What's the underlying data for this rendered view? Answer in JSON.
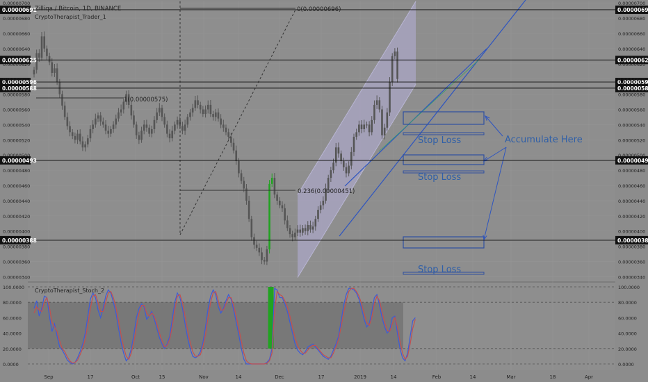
{
  "header": {
    "symbol_line": "Zilliqa / Bitcoin, 1D, BINANCE",
    "indicator_1": "CryptoTherapist_Trader_1",
    "indicator_2": "CryptoTherapist_Stoch_2"
  },
  "colors": {
    "background": "#8c8c8c",
    "panel": "#8e8e8e",
    "candle": "#555555",
    "channel_fill": "#a9a6c4",
    "box_stroke": "#2e4fa0",
    "annotation_text": "#2f5fa8",
    "stoch_k": "#3d5bd8",
    "stoch_d": "#c25050",
    "highlight_green": "#21a321",
    "level_line": "#111111"
  },
  "chart_data": [
    {
      "type": "candlestick",
      "title": "Zilliqa / Bitcoin, 1D, BINANCE",
      "ylim": [
        3.34e-06,
        7.02e-06
      ],
      "x_ticks": [
        "Sep",
        "17",
        "Oct",
        "15",
        "Nov",
        "14",
        "Dec",
        "17",
        "2019",
        "14",
        "Feb",
        "14",
        "Mar",
        "18",
        "Apr"
      ],
      "y_ticks": [
        "0.00000340",
        "0.00000360",
        "0.00000380",
        "0.00000400",
        "0.00000420",
        "0.00000440",
        "0.00000460",
        "0.00000480",
        "0.00000500",
        "0.00000520",
        "0.00000540",
        "0.00000560",
        "0.00000580",
        "0.00000600",
        "0.00000620",
        "0.00000640",
        "0.00000660",
        "0.00000680",
        "0.00000700"
      ],
      "close": [
        6.12e-06,
        6.34e-06,
        6.28e-06,
        6.56e-06,
        6.4e-06,
        6.3e-06,
        6.22e-06,
        6.08e-06,
        6.14e-06,
        5.96e-06,
        5.8e-06,
        5.65e-06,
        5.5e-06,
        5.38e-06,
        5.3e-06,
        5.25e-06,
        5.2e-06,
        5.28e-06,
        5.18e-06,
        5.1e-06,
        5.14e-06,
        5.22e-06,
        5.34e-06,
        5.4e-06,
        5.48e-06,
        5.52e-06,
        5.44e-06,
        5.4e-06,
        5.32e-06,
        5.28e-06,
        5.34e-06,
        5.4e-06,
        5.48e-06,
        5.56e-06,
        5.6e-06,
        5.7e-06,
        5.8e-06,
        5.66e-06,
        5.52e-06,
        5.4e-06,
        5.26e-06,
        5.2e-06,
        5.32e-06,
        5.4e-06,
        5.36e-06,
        5.28e-06,
        5.34e-06,
        5.46e-06,
        5.56e-06,
        5.62e-06,
        5.5e-06,
        5.4e-06,
        5.28e-06,
        5.22e-06,
        5.32e-06,
        5.4e-06,
        5.46e-06,
        5.38e-06,
        5.32e-06,
        5.4e-06,
        5.5e-06,
        5.56e-06,
        5.62e-06,
        5.72e-06,
        5.66e-06,
        5.6e-06,
        5.54e-06,
        5.6e-06,
        5.66e-06,
        5.54e-06,
        5.5e-06,
        5.56e-06,
        5.48e-06,
        5.4e-06,
        5.36e-06,
        5.3e-06,
        5.24e-06,
        5.16e-06,
        5.06e-06,
        4.92e-06,
        4.76e-06,
        4.66e-06,
        4.56e-06,
        4.4e-06,
        4.16e-06,
        3.92e-06,
        3.82e-06,
        3.78e-06,
        3.72e-06,
        3.62e-06,
        3.6e-06,
        3.76e-06,
        4.62e-06,
        4.7e-06,
        4.48e-06,
        4.4e-06,
        4.34e-06,
        4.3e-06,
        4.14e-06,
        4.04e-06,
        3.96e-06,
        3.92e-06,
        3.98e-06,
        4.02e-06,
        3.98e-06,
        4.04e-06,
        4e-06,
        4.08e-06,
        4.02e-06,
        4.06e-06,
        4.16e-06,
        4.28e-06,
        4.34e-06,
        4.4e-06,
        4.56e-06,
        4.7e-06,
        4.8e-06,
        4.9e-06,
        5.1e-06,
        5.02e-06,
        4.92e-06,
        4.84e-06,
        4.76e-06,
        4.86e-06,
        5.04e-06,
        5.24e-06,
        5.3e-06,
        5.4e-06,
        5.34e-06,
        5.4e-06,
        5.4e-06,
        5.3e-06,
        5.46e-06,
        5.66e-06,
        5.72e-06,
        5.6e-06,
        5.26e-06,
        5.36e-06,
        5.56e-06,
        5.96e-06,
        6.3e-06,
        6.36e-06,
        6e-06
      ],
      "levels": [
        {
          "label": "0.00000691",
          "value": 6.91e-06
        },
        {
          "label": "0.00000625",
          "value": 6.25e-06
        },
        {
          "label": "0.00000596",
          "value": 5.96e-06
        },
        {
          "label": "0.00000588",
          "value": 5.88e-06
        },
        {
          "label": "0.00000493",
          "value": 4.93e-06
        },
        {
          "label": "0.00000388",
          "value": 3.88e-06
        }
      ],
      "fib_labels": [
        "0(0.00000696)",
        "1(0.00000575)",
        "0.236(0.00000451)"
      ],
      "annotations": [
        "Stop Loss",
        "Stop Loss",
        "Stop Loss",
        "Accumulate Here"
      ]
    },
    {
      "type": "line",
      "title": "CryptoTherapist_Stoch_2",
      "ylim": [
        0,
        100
      ],
      "y_ticks": [
        "0.0000",
        "20.0000",
        "40.0000",
        "60.0000",
        "80.0000",
        "100.0000"
      ],
      "bands": [
        20,
        80
      ],
      "series": [
        {
          "values": [
            72,
            82,
            62,
            72,
            88,
            86,
            62,
            42,
            52,
            36,
            22,
            18,
            12,
            5,
            2,
            0,
            2,
            8,
            16,
            26,
            40,
            62,
            84,
            92,
            86,
            70,
            60,
            72,
            88,
            96,
            92,
            80,
            66,
            46,
            28,
            14,
            4,
            8,
            20,
            38,
            60,
            72,
            78,
            74,
            58,
            62,
            68,
            58,
            46,
            34,
            26,
            20,
            26,
            36,
            58,
            80,
            92,
            86,
            72,
            52,
            34,
            20,
            10,
            8,
            10,
            16,
            28,
            48,
            72,
            88,
            96,
            90,
            74,
            66,
            72,
            82,
            90,
            84,
            70,
            54,
            38,
            20,
            6,
            0,
            0,
            0,
            0,
            0,
            0,
            0,
            0,
            2,
            6,
            20,
            98,
            96,
            86,
            86,
            78,
            68,
            54,
            40,
            26,
            18,
            14,
            12,
            16,
            22,
            24,
            26,
            22,
            18,
            14,
            10,
            8,
            6,
            10,
            18,
            26,
            36,
            56,
            76,
            90,
            98,
            98,
            96,
            92,
            84,
            72,
            58,
            48,
            52,
            68,
            86,
            90,
            76,
            60,
            48,
            40,
            44,
            60,
            62,
            40,
            20,
            8,
            4,
            14,
            36,
            56,
            60
          ]
        },
        {
          "values": [
            66,
            74,
            70,
            68,
            80,
            86,
            74,
            54,
            48,
            42,
            30,
            20,
            16,
            9,
            4,
            1,
            2,
            5,
            12,
            20,
            32,
            50,
            72,
            88,
            90,
            80,
            68,
            68,
            80,
            92,
            94,
            86,
            74,
            56,
            38,
            22,
            10,
            6,
            14,
            28,
            48,
            66,
            76,
            76,
            66,
            62,
            66,
            62,
            52,
            40,
            30,
            22,
            24,
            32,
            48,
            70,
            88,
            90,
            80,
            62,
            44,
            28,
            16,
            10,
            10,
            12,
            22,
            38,
            60,
            80,
            92,
            94,
            82,
            70,
            70,
            78,
            86,
            86,
            76,
            62,
            46,
            30,
            14,
            4,
            1,
            0,
            0,
            0,
            0,
            0,
            0,
            1,
            4,
            14,
            70,
            94,
            90,
            88,
            82,
            74,
            62,
            48,
            34,
            24,
            18,
            14,
            14,
            18,
            22,
            24,
            24,
            20,
            16,
            12,
            10,
            8,
            8,
            14,
            22,
            32,
            48,
            66,
            82,
            94,
            98,
            98,
            94,
            88,
            78,
            66,
            54,
            50,
            60,
            78,
            88,
            82,
            68,
            54,
            44,
            42,
            52,
            60,
            48,
            30,
            14,
            6,
            10,
            26,
            46,
            58
          ]
        }
      ]
    }
  ]
}
